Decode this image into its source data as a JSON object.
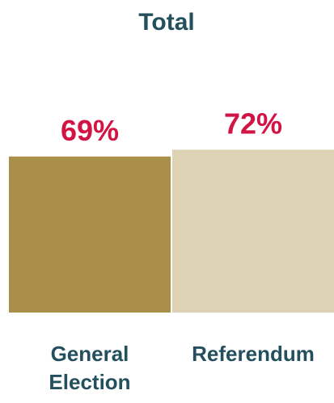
{
  "chart_data": {
    "type": "bar",
    "title": "Total",
    "categories": [
      "General Election",
      "Referendum"
    ],
    "category_lines": [
      [
        "General",
        "Election"
      ],
      [
        "Referendum"
      ]
    ],
    "values": [
      69,
      72
    ],
    "value_labels": [
      "69%",
      "72%"
    ],
    "unit": "%",
    "ylim": [
      0,
      100
    ],
    "xlabel": "",
    "ylabel": "",
    "grid": false,
    "legend": "none",
    "colors": {
      "bars": [
        "#A98F4A",
        "#DDD2B4"
      ],
      "data_labels": "#D21445",
      "title": "#24505E",
      "category_labels": "#24505E"
    }
  }
}
